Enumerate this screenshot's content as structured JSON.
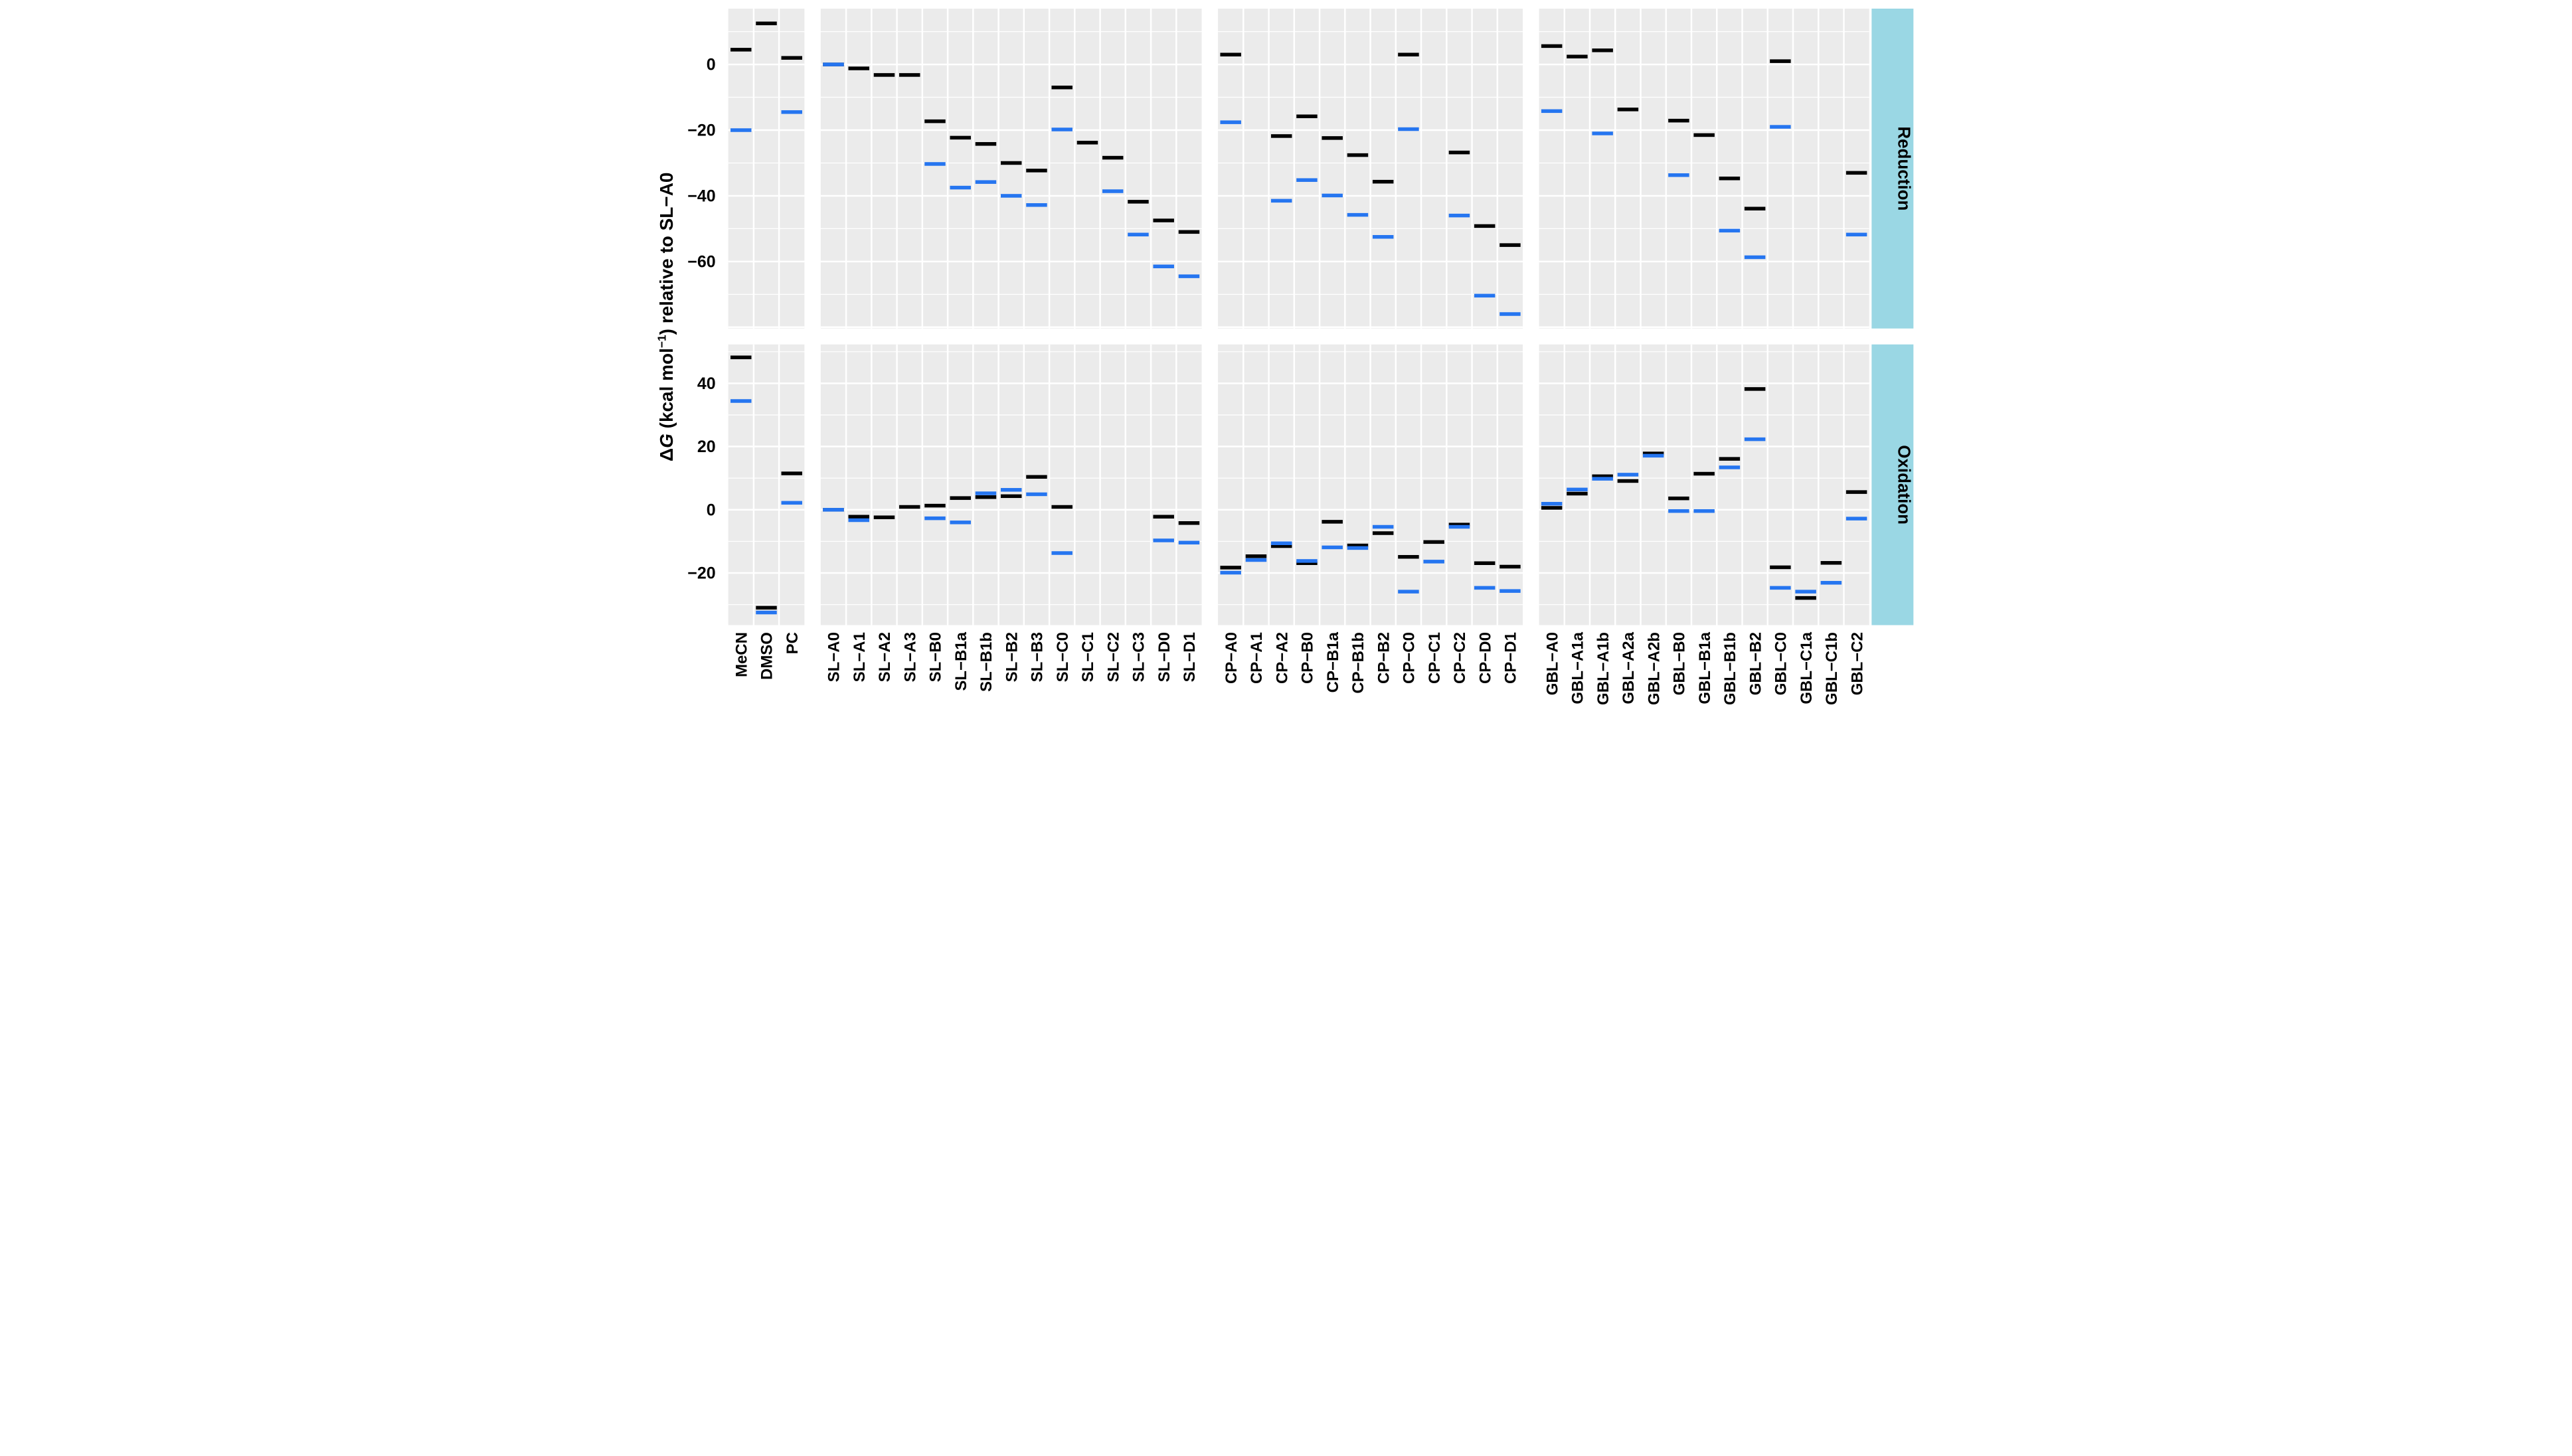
{
  "figure": {
    "y_axis_title": {
      "delta": "Δ",
      "italic_g": "G",
      "mid": " (kcal mol",
      "superscript": "−1",
      "tail": ") relative to SL−A0"
    }
  },
  "chart_data": {
    "type": "crossbar-dash-plot",
    "description": "Faceted dash/crossbar plot of relative free energies; two methods per category: black and blue horizontal dashes.",
    "colors": {
      "mark_black": "#000000",
      "mark_blue": "#2575F0",
      "panel_bg": "#EBEBEB",
      "gridline": "#FFFFFF",
      "strip_bg": "#9AD7E4",
      "text": "#000000"
    },
    "legend_position": "none",
    "grid": "on",
    "facet_rows": [
      {
        "label": "Reduction",
        "ticks": [
          0,
          -20,
          -40,
          -60
        ],
        "tick_labels": [
          "0",
          "−20",
          "−40",
          "−60"
        ],
        "ylim_top": 17.0,
        "ylim_bottom": -80.4
      },
      {
        "label": "Oxidation",
        "ticks": [
          40,
          20,
          0,
          -20
        ],
        "tick_labels": [
          "40",
          "20",
          "0",
          "−20"
        ],
        "ylim_top": 52.3,
        "ylim_bottom": -36.5
      }
    ],
    "facet_cols": [
      {
        "id": "solvents",
        "categories": [
          "MeCN",
          "DMSO",
          "PC"
        ]
      },
      {
        "id": "SL",
        "categories": [
          "SL−A0",
          "SL−A1",
          "SL−A2",
          "SL−A3",
          "SL−B0",
          "SL−B1a",
          "SL−B1b",
          "SL−B2",
          "SL−B3",
          "SL−C0",
          "SL−C1",
          "SL−C2",
          "SL−C3",
          "SL−D0",
          "SL−D1"
        ]
      },
      {
        "id": "CP",
        "categories": [
          "CP−A0",
          "CP−A1",
          "CP−A2",
          "CP−B0",
          "CP−B1a",
          "CP−B1b",
          "CP−B2",
          "CP−C0",
          "CP−C1",
          "CP−C2",
          "CP−D0",
          "CP−D1"
        ]
      },
      {
        "id": "GBL",
        "categories": [
          "GBL−A0",
          "GBL−A1a",
          "GBL−A1b",
          "GBL−A2a",
          "GBL−A2b",
          "GBL−B0",
          "GBL−B1a",
          "GBL−B1b",
          "GBL−B2",
          "GBL−C0",
          "GBL−C1a",
          "GBL−C1b",
          "GBL−C2"
        ]
      }
    ],
    "series": {
      "Reduction": {
        "solvents": {
          "black": [
            4.5,
            12.5,
            2.0
          ],
          "blue": [
            -20.0,
            null,
            -14.5
          ]
        },
        "SL": {
          "black": [
            0,
            -1.2,
            -3.2,
            -3.2,
            -17.3,
            -22.3,
            -24.2,
            -30.0,
            -32.3,
            -7.0,
            -23.8,
            -28.4,
            -41.8,
            -47.5,
            -51.0
          ],
          "blue": [
            0,
            null,
            null,
            null,
            -30.3,
            -37.5,
            -35.8,
            -40.0,
            -42.8,
            -19.8,
            null,
            -38.6,
            -51.8,
            -61.5,
            -64.5
          ]
        },
        "CP": {
          "black": [
            3.0,
            null,
            -21.8,
            -15.8,
            -22.4,
            -27.6,
            -35.7,
            3.0,
            null,
            -26.8,
            -49.2,
            -55.0
          ],
          "blue": [
            -17.6,
            null,
            -41.5,
            -35.2,
            -39.9,
            -45.8,
            -52.5,
            -19.7,
            null,
            -46.0,
            -70.4,
            -76.0
          ]
        },
        "GBL": {
          "black": [
            5.6,
            2.4,
            4.3,
            -13.7,
            null,
            -17.1,
            -21.5,
            -34.7,
            -43.9,
            1.0,
            null,
            null,
            -33.0
          ],
          "blue": [
            -14.2,
            null,
            -21.0,
            null,
            null,
            -33.7,
            null,
            -50.6,
            -58.7,
            -19.0,
            null,
            null,
            -51.8
          ]
        }
      },
      "Oxidation": {
        "solvents": {
          "black": [
            48.2,
            -31.0,
            11.5
          ],
          "blue": [
            34.4,
            -32.5,
            2.2
          ]
        },
        "SL": {
          "black": [
            0,
            -2.2,
            -2.4,
            0.9,
            1.3,
            3.7,
            4.0,
            4.3,
            10.4,
            0.9,
            null,
            null,
            null,
            -2.2,
            -4.2
          ],
          "blue": [
            0,
            -3.3,
            null,
            null,
            -2.7,
            -4.0,
            5.2,
            6.3,
            4.9,
            -13.7,
            null,
            null,
            null,
            -9.7,
            -10.4
          ]
        },
        "CP": {
          "black": [
            -18.3,
            -14.7,
            -11.5,
            -16.9,
            -3.8,
            -11.3,
            -7.4,
            -14.9,
            -10.2,
            -4.7,
            -16.9,
            -18.0
          ],
          "blue": [
            -19.9,
            -15.9,
            -10.6,
            -16.2,
            -11.9,
            -12.1,
            -5.4,
            -25.9,
            -16.4,
            -5.4,
            -24.7,
            -25.7
          ]
        },
        "GBL": {
          "black": [
            0.6,
            5.1,
            10.6,
            9.1,
            17.8,
            3.6,
            11.4,
            16.1,
            38.2,
            -18.2,
            -27.9,
            -16.8,
            5.6
          ],
          "blue": [
            1.9,
            6.4,
            9.8,
            11.1,
            17.1,
            -0.4,
            -0.4,
            13.4,
            22.3,
            -24.7,
            -25.9,
            -23.1,
            -2.8
          ]
        }
      }
    }
  }
}
